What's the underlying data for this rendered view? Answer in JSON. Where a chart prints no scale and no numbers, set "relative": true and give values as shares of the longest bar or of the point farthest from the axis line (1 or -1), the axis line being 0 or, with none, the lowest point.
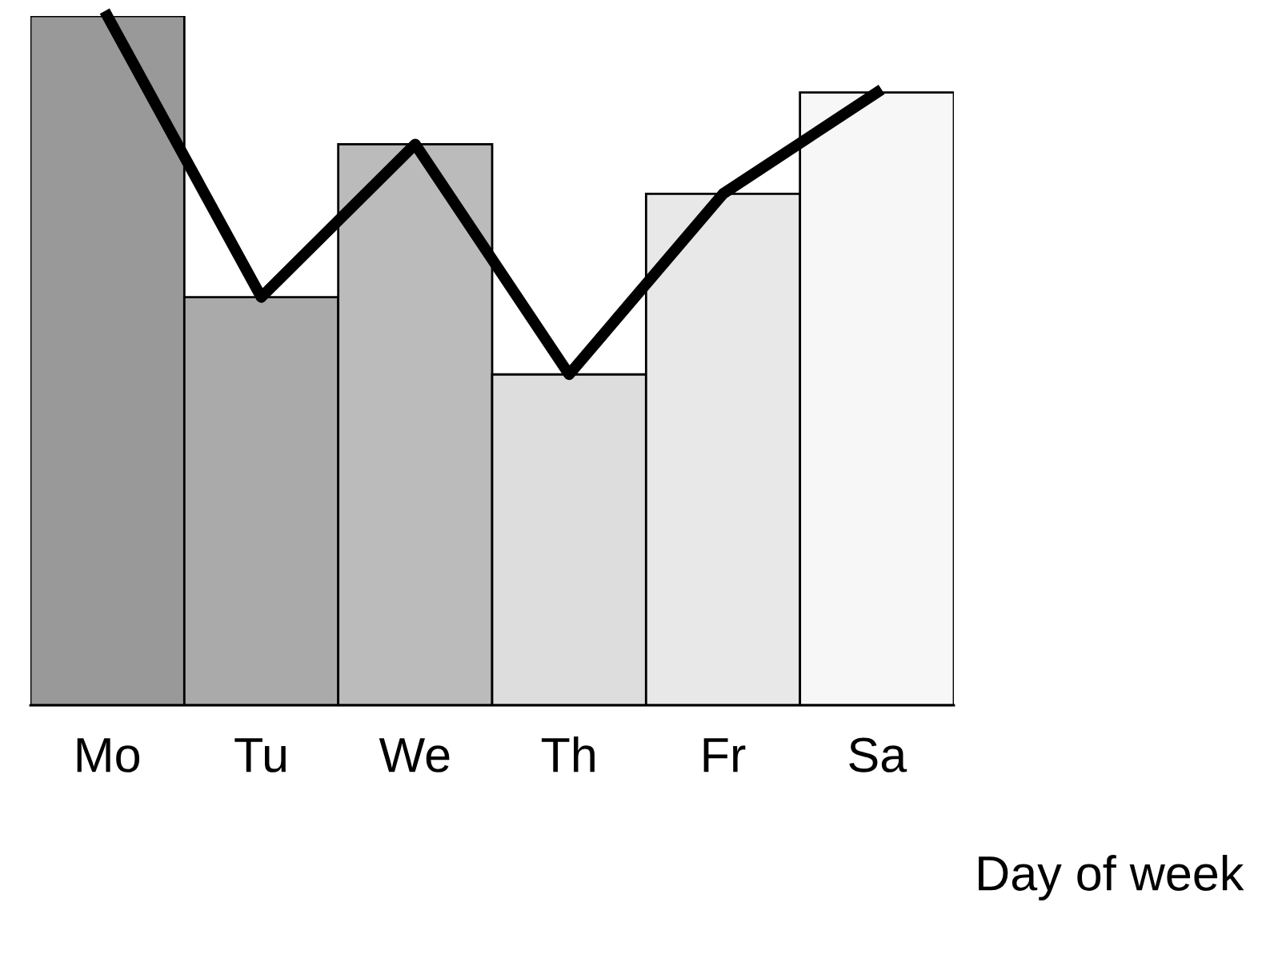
{
  "chart_data": {
    "type": "bar",
    "relative": true,
    "xlabel": "Day of week",
    "categories": [
      "Mo",
      "Tu",
      "We",
      "Th",
      "Fr",
      "Sa"
    ],
    "series": [
      {
        "colors": [
          "#999999",
          "#aaaaaa",
          "#bbbbbb",
          "#dddddd",
          "#e8e8e8",
          "#f7f7f7"
        ],
        "values": [
          1,
          0.592,
          0.814,
          0.48,
          0.742,
          0.889
        ]
      },
      {
        "type": "line",
        "color": "#000000",
        "values": [
          1,
          0.592,
          0.814,
          0.48,
          0.742,
          0.889
        ]
      }
    ],
    "grid": false,
    "legend": false,
    "marker": "none",
    "line_style": "solid"
  }
}
